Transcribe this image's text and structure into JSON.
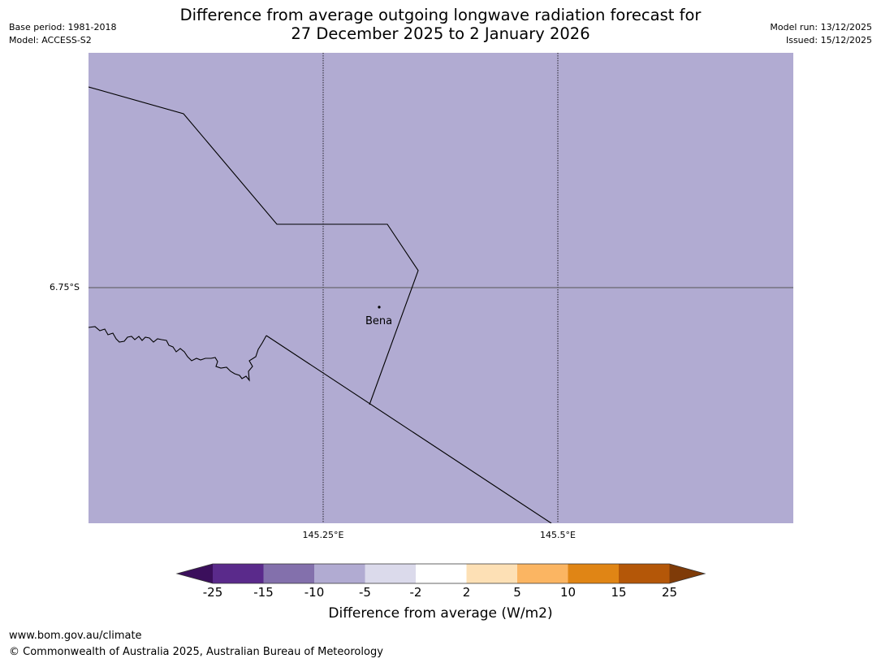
{
  "header": {
    "title_line1": "Difference from average outgoing longwave radiation forecast for",
    "title_line2": "27 December 2025 to 2 January 2026",
    "base_period": "Base period: 1981-2018",
    "model": "Model: ACCESS-S2",
    "model_run": "Model run: 13/12/2025",
    "issued": "Issued: 15/12/2025"
  },
  "map": {
    "fill_color": "#b1abd2",
    "lat_label": "6.75°S",
    "lon_labels": [
      "145.25°E",
      "145.5°E"
    ],
    "place": "Bena"
  },
  "colorbar": {
    "title": "Difference from average (W/m2)",
    "ticks": [
      "-25",
      "-15",
      "-10",
      "-5",
      "-2",
      "2",
      "5",
      "10",
      "15",
      "25"
    ],
    "colors": [
      "#3b0f5c",
      "#5a2a8b",
      "#8370ac",
      "#b1abd2",
      "#dbdaeb",
      "#ffffff",
      "#fde0b5",
      "#fbb562",
      "#e08515",
      "#b45708",
      "#7f3b08"
    ]
  },
  "footer": {
    "url": "www.bom.gov.au/climate",
    "copyright": "© Commonwealth of Australia 2025, Australian Bureau of Meteorology"
  }
}
